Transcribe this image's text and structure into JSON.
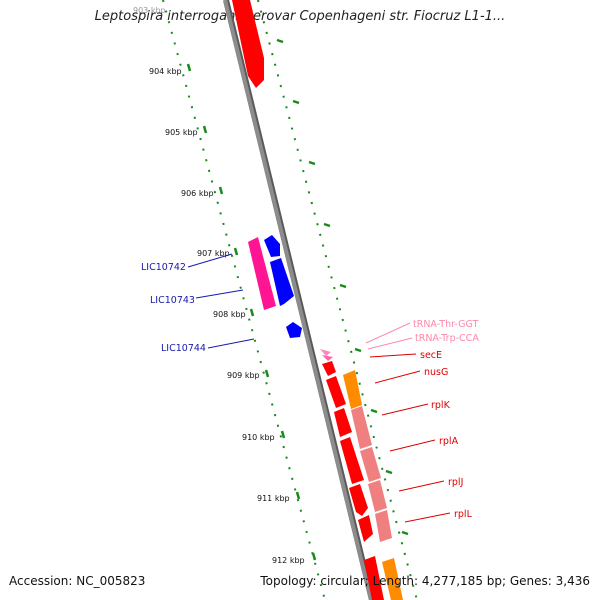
{
  "header": {
    "title": "Leptospira interrogans serovar Copenhageni str. Fiocruz L1-1..."
  },
  "footer": {
    "accession": "Accession: NC_005823",
    "summary": "Topology: circular; Length: 4,277,185 bp; Genes: 3,436"
  },
  "map": {
    "kbp_labels": [
      "903 kbp",
      "904 kbp",
      "905 kbp",
      "906 kbp",
      "907 kbp",
      "908 kbp",
      "909 kbp",
      "910 kbp",
      "911 kbp",
      "912 kbp"
    ],
    "colors": {
      "backbone": "#8a8a8a",
      "cds_forward": "#ff0000",
      "cds_reverse_magenta": "#ff1493",
      "cds_blue": "#0000ff",
      "rrna_orange": "#ff8c00",
      "pink_light": "#f08080",
      "trna_pink": "#ff77aa",
      "gc_green": "#1a8a1a"
    },
    "gene_labels": [
      {
        "text": "LIC10742",
        "color": "#1a1aaa"
      },
      {
        "text": "LIC10743",
        "color": "#1a1aaa"
      },
      {
        "text": "LIC10744",
        "color": "#1a1aaa"
      },
      {
        "text": "tRNA-Thr-GGT",
        "color": "#ff88aa"
      },
      {
        "text": "tRNA-Trp-CCA",
        "color": "#ff88aa"
      },
      {
        "text": "secE",
        "color": "#dd0000"
      },
      {
        "text": "nusG",
        "color": "#dd0000"
      },
      {
        "text": "rplK",
        "color": "#dd0000"
      },
      {
        "text": "rplA",
        "color": "#dd0000"
      },
      {
        "text": "rplJ",
        "color": "#dd0000"
      },
      {
        "text": "rplL",
        "color": "#dd0000"
      }
    ]
  }
}
